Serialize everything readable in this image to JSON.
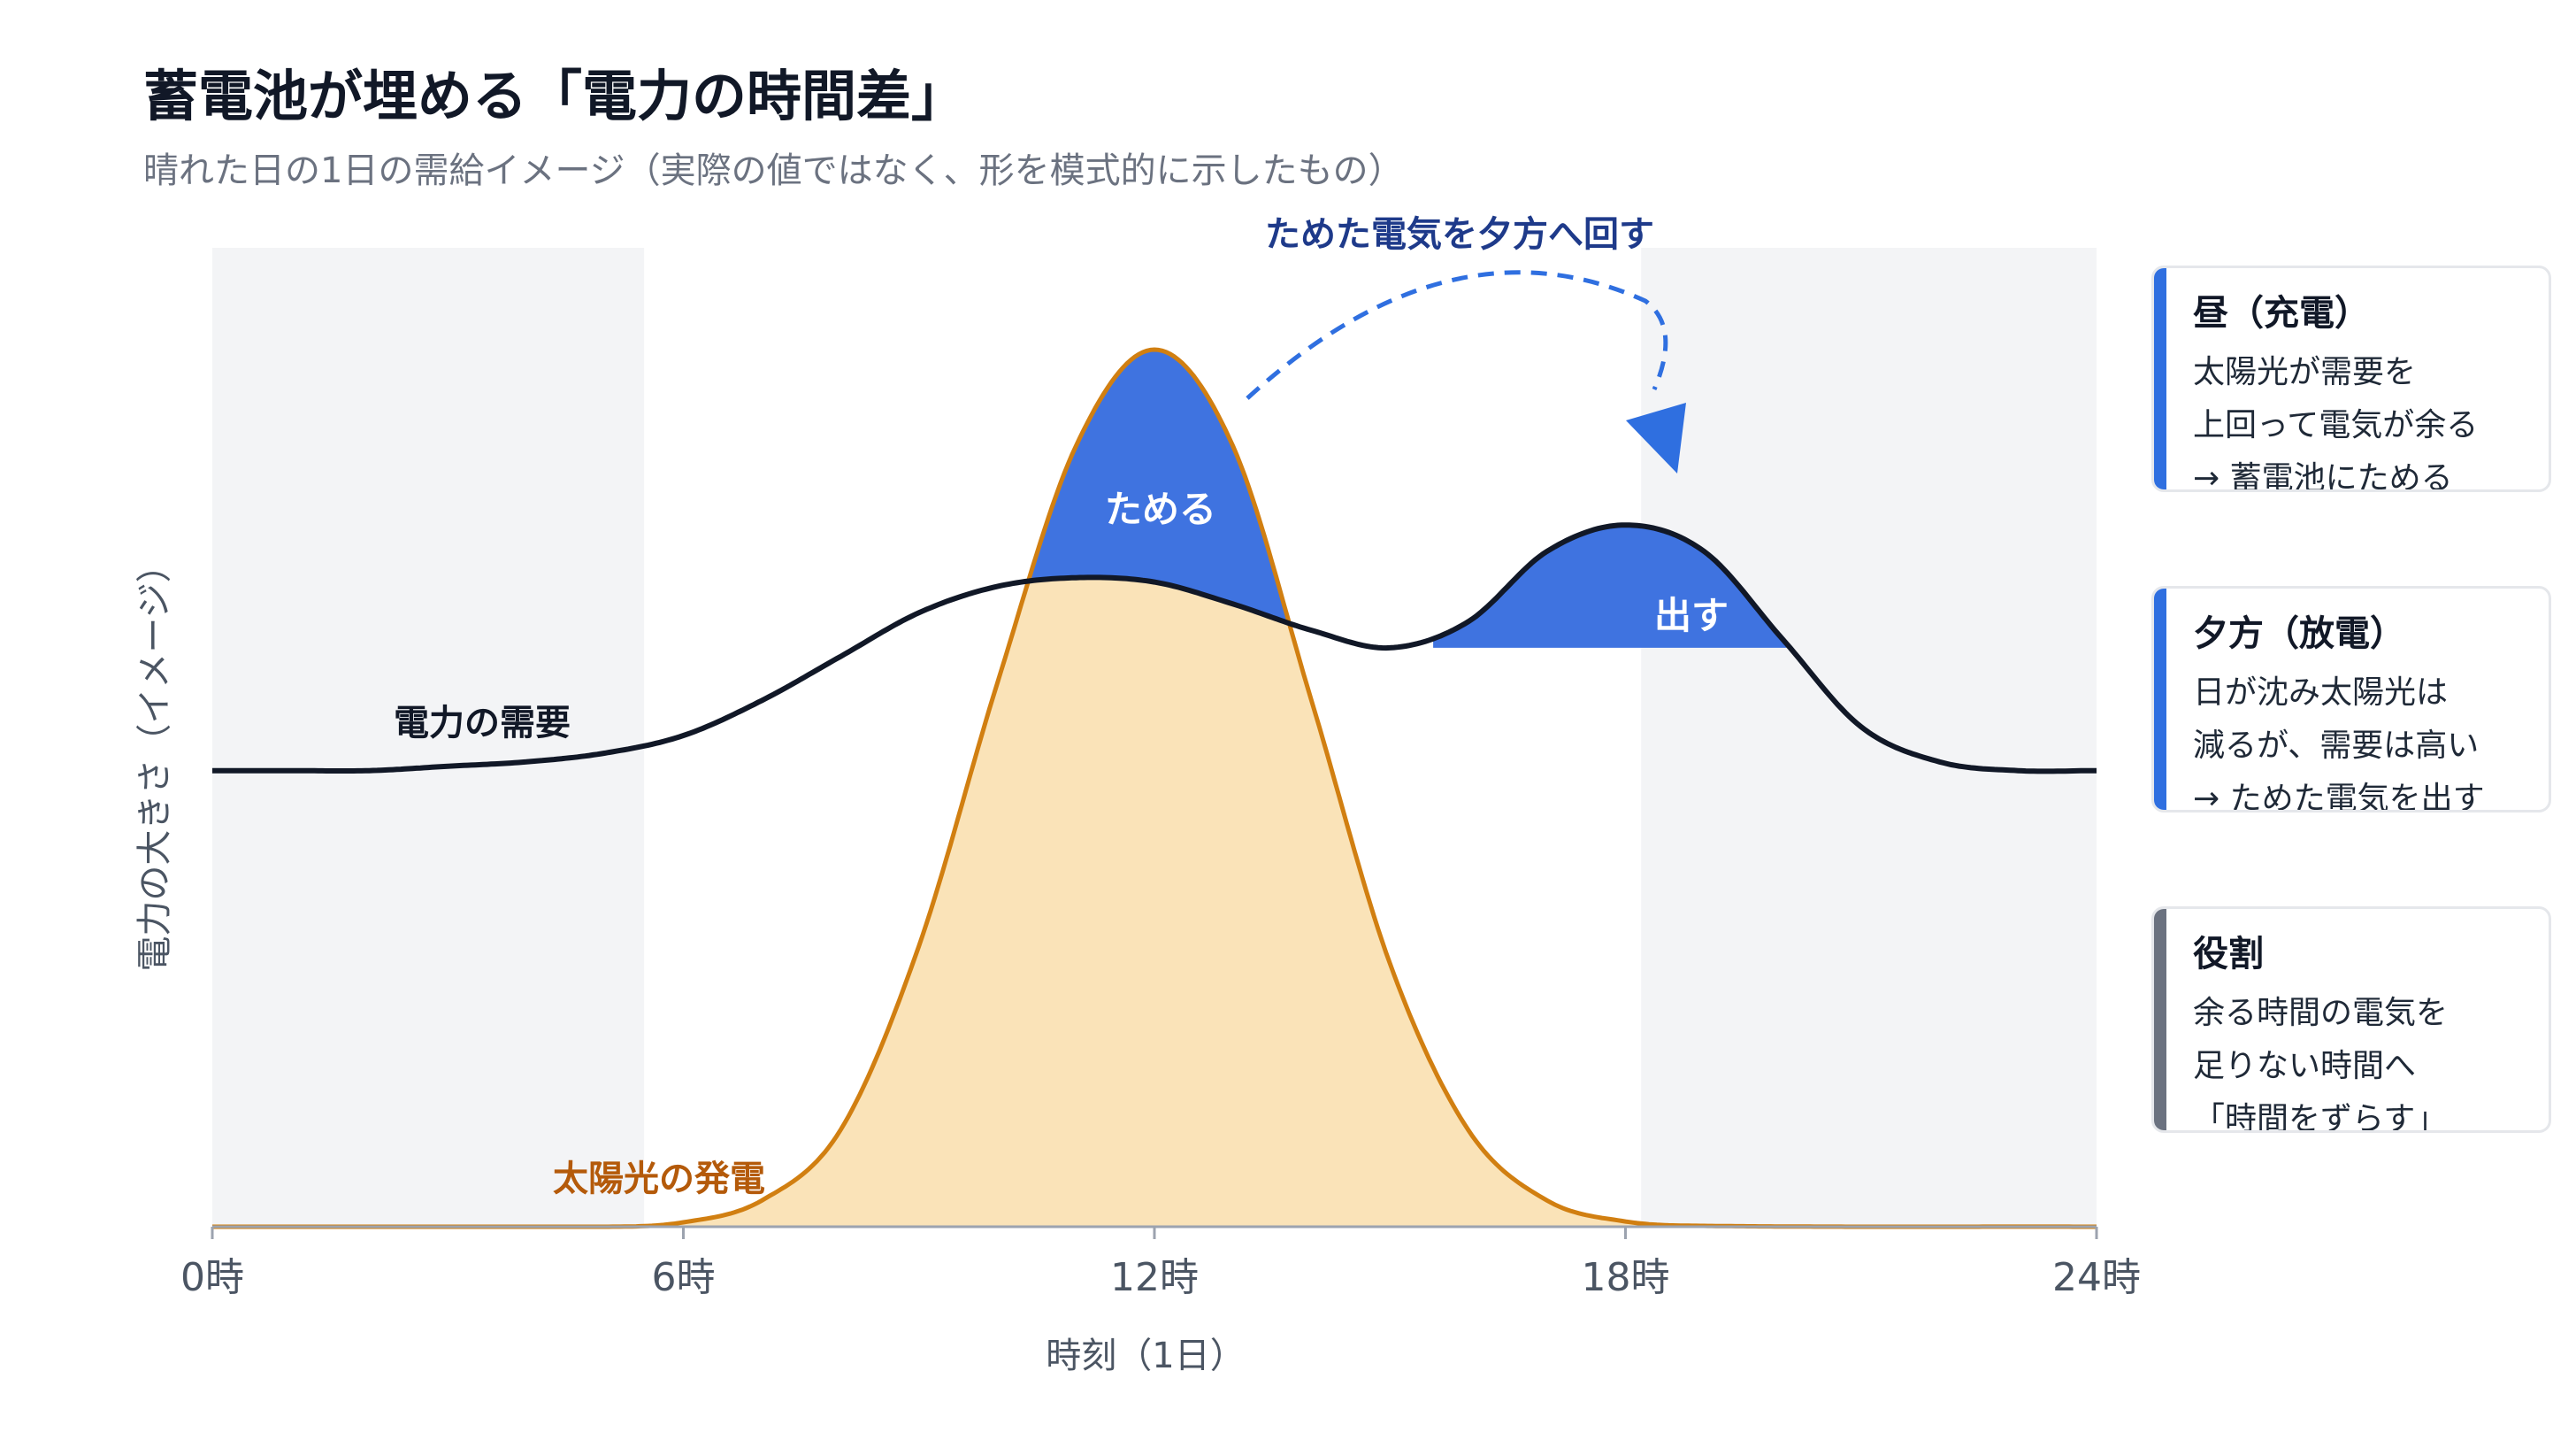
{
  "title": "蓄電池が埋める「電力の時間差」",
  "subtitle": "晴れた日の1日の需給イメージ（実際の値ではなく、形を模式的に示したもの）",
  "chart_data": {
    "type": "area",
    "xlabel": "時刻（1日）",
    "ylabel": "電力の大きさ（イメージ）",
    "xlim": [
      0,
      24
    ],
    "x_ticks": [
      0,
      6,
      12,
      18,
      24
    ],
    "x_tick_labels": [
      "0時",
      "6時",
      "12時",
      "18時",
      "24時"
    ],
    "night_shading": [
      [
        0,
        5.5
      ],
      [
        18.2,
        24
      ]
    ],
    "series": [
      {
        "name": "電力の需要",
        "color": "#111827",
        "x": [
          0,
          1,
          2,
          3,
          4,
          5,
          6,
          7,
          8,
          9,
          10,
          11,
          12,
          13,
          14,
          15,
          16,
          17,
          18,
          19,
          20,
          21,
          22,
          23,
          24
        ],
        "values": [
          0.52,
          0.52,
          0.52,
          0.525,
          0.53,
          0.54,
          0.56,
          0.6,
          0.65,
          0.7,
          0.73,
          0.74,
          0.735,
          0.71,
          0.68,
          0.66,
          0.69,
          0.77,
          0.8,
          0.77,
          0.67,
          0.57,
          0.53,
          0.52,
          0.52
        ]
      },
      {
        "name": "太陽光の発電",
        "color": "#d17f11",
        "x": [
          0,
          5,
          6,
          7,
          8,
          9,
          10,
          11,
          12,
          13,
          14,
          15,
          16,
          17,
          18,
          19,
          24
        ],
        "values": [
          0,
          0,
          0.005,
          0.03,
          0.11,
          0.32,
          0.62,
          0.89,
          1.0,
          0.89,
          0.6,
          0.3,
          0.11,
          0.03,
          0.006,
          0.001,
          0
        ]
      }
    ],
    "annotations": {
      "charge_label": "ためる",
      "discharge_label": "出す",
      "shift_label": "ためた電気を夕方へ回す"
    }
  },
  "cards": [
    {
      "title": "昼（充電）",
      "lines": [
        "太陽光が需要を",
        "上回って電気が余る",
        "→ 蓄電池にためる"
      ],
      "accent": "#2f6fe0"
    },
    {
      "title": "夕方（放電）",
      "lines": [
        "日が沈み太陽光は",
        "減るが、需要は高い",
        "→ ためた電気を出す"
      ],
      "accent": "#2f6fe0"
    },
    {
      "title": "役割",
      "lines": [
        "余る時間の電気を",
        "足りない時間へ",
        "「時間をずらす」"
      ],
      "accent": "#6b7280"
    }
  ],
  "colors": {
    "demand": "#111827",
    "solar_line": "#d17f11",
    "solar_fill": "#fae3b8",
    "storage": "#3f73e0",
    "arrow": "#2f6fe0",
    "night_band": "#f3f4f6",
    "axis_text": "#4b5563"
  }
}
